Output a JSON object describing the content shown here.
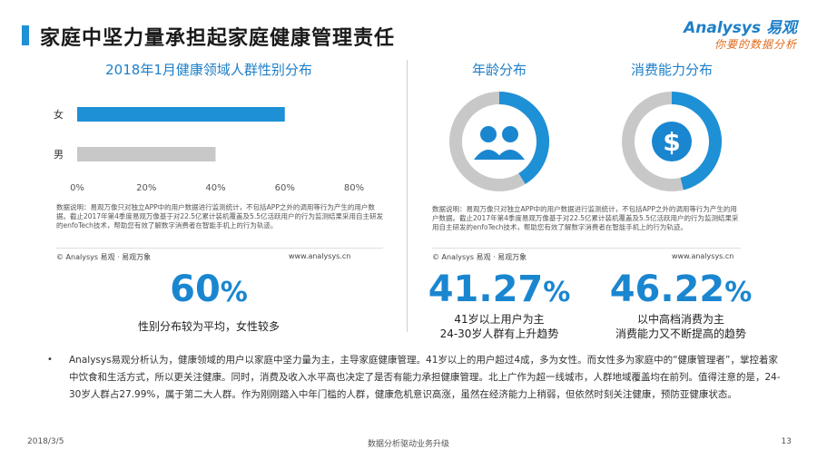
{
  "header": {
    "title": "家庭中坚力量承担起家庭健康管理责任",
    "logo_main": "Analysys 易观",
    "logo_sub": "你要的数据分析"
  },
  "colors": {
    "accent": "#1e90d6",
    "bar_female": "#1e90d6",
    "bar_male": "#c8c8c8",
    "donut_track": "#c8c8c8"
  },
  "gender_section": {
    "title": "2018年1月健康领域人群性别分布",
    "note": "数据说明：易观万像只对独立APP中的用户数据进行监测统计，不包括APP之外的调用等行为产生的用户数据。截止2017年第4季度易观万像基于对22.5亿累计装机覆盖及5.5亿活跃用户的行为监测结果采用自主研发的enfoTech技术，帮助您有效了解数字消费者在智能手机上的行为轨迹。",
    "copyright": "© Analysys 易观 · 易观万象",
    "url": "www.analysys.cn",
    "stat": {
      "value": "60",
      "unit": "%",
      "desc": "性别分布较为平均，女性较多"
    }
  },
  "age_section": {
    "title": "年龄分布",
    "icon": "people-icon",
    "stat": {
      "value": "41.27",
      "unit": "%",
      "desc_line1": "41岁以上用户为主",
      "desc_line2": "24-30岁人群有上升趋势"
    }
  },
  "spend_section": {
    "title": "消费能力分布",
    "icon": "dollar-icon",
    "stat": {
      "value": "46.22",
      "unit": "%",
      "desc_line1": "以中高档消费为主",
      "desc_line2": "消费能力又不断提高的趋势"
    }
  },
  "right_note": {
    "note": "数据说明：易观万像只对独立APP中的用户数据进行监测统计，不包括APP之外的调用等行为产生的用户数据。截止2017年第4季度易观万像基于对22.5亿累计装机覆盖及5.5亿活跃用户的行为监测结果采用自主研发的enfoTech技术，帮助您有效了解数字消费者在智能手机上的行为轨迹。",
    "copyright": "© Analysys 易观 · 易观万象",
    "url": "www.analysys.cn"
  },
  "summary": {
    "text": "Analysys易观分析认为，健康领域的用户以家庭中坚力量为主，主导家庭健康管理。41岁以上的用户超过4成，多为女性。而女性多为家庭中的“健康管理者”，掌控着家中饮食和生活方式，所以更关注健康。同时，消费及收入水平高也决定了是否有能力承担健康管理。北上广作为超一线城市，人群地域覆盖均在前列。值得注意的是，24-30岁人群占27.99%，属于第二大人群。作为刚刚踏入中年门槛的人群，健康危机意识高涨，虽然在经济能力上稍弱，但依然时刻关注健康，预防亚健康状态。"
  },
  "footer": {
    "date": "2018/3/5",
    "center": "数据分析驱动业务升级",
    "page": "13"
  },
  "chart_data": [
    {
      "type": "bar",
      "orientation": "horizontal",
      "title": "2018年1月健康领域人群性别分布",
      "categories": [
        "女",
        "男"
      ],
      "values": [
        60,
        40
      ],
      "xlim": [
        0,
        80
      ],
      "xticks": [
        "0%",
        "20%",
        "40%",
        "60%",
        "80%"
      ],
      "grid": false
    },
    {
      "type": "pie",
      "title": "年龄分布",
      "values": [
        41.27,
        58.73
      ],
      "style": "donut"
    },
    {
      "type": "pie",
      "title": "消费能力分布",
      "values": [
        46.22,
        53.78
      ],
      "style": "donut"
    }
  ]
}
